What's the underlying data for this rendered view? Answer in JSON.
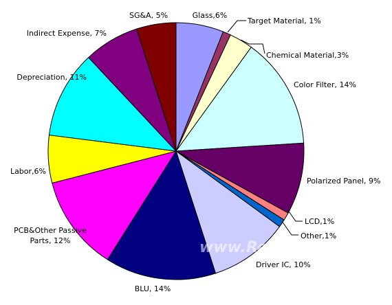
{
  "chart_data": {
    "type": "pie",
    "categories": [
      "Glass,6%",
      "Target Material, 1%",
      "Chemical Material,3%",
      "Color Filter, 14%",
      "Polarized Panel, 9%",
      "LCD,1%",
      "Other,1%",
      "Driver IC, 10%",
      "BLU, 14%",
      "PCB&Other Passive Parts, 12%",
      "Labor,6%",
      "Depreciation, 11%",
      "Indirect Expense, 7%",
      "SG&A, 5%"
    ],
    "values": [
      6,
      1,
      3,
      14,
      9,
      1,
      1,
      10,
      14,
      12,
      6,
      11,
      7,
      5
    ],
    "colors": [
      "#9999ff",
      "#993366",
      "#ffffcc",
      "#ccffff",
      "#660066",
      "#ff8080",
      "#0066cc",
      "#ccccff",
      "#000080",
      "#ff00ff",
      "#ffff00",
      "#00ffff",
      "#800080",
      "#800000"
    ],
    "watermark": "www.ResearchInChina.com"
  }
}
